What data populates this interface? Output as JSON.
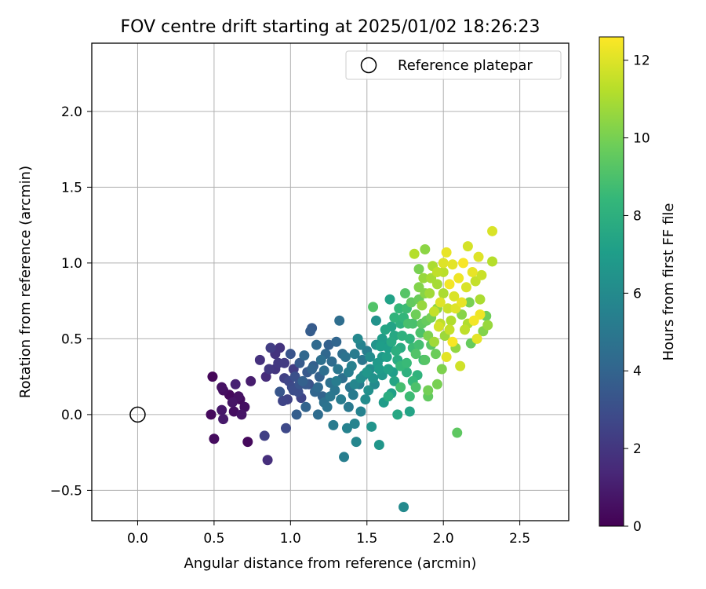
{
  "chart_data": {
    "type": "scatter",
    "title": "FOV centre drift starting at 2025/01/02 18:26:23",
    "xlabel": "Angular distance from reference (arcmin)",
    "ylabel": "Rotation from reference (arcmin)",
    "xlim": [
      -0.3,
      2.82
    ],
    "ylim": [
      -0.7,
      2.45
    ],
    "xticks": [
      0.0,
      0.5,
      1.0,
      1.5,
      2.0,
      2.5
    ],
    "xtick_labels": [
      "0.0",
      "0.5",
      "1.0",
      "1.5",
      "2.0",
      "2.5"
    ],
    "yticks": [
      -0.5,
      0.0,
      0.5,
      1.0,
      1.5,
      2.0
    ],
    "ytick_labels": [
      "−0.5",
      "0.0",
      "0.5",
      "1.0",
      "1.5",
      "2.0"
    ],
    "grid": true,
    "legend": {
      "position": "upper-right",
      "label": "Reference platepar"
    },
    "reference_point": {
      "x": 0.0,
      "y": 0.0
    },
    "colorbar": {
      "label": "Hours from first FF file",
      "min": 0,
      "max": 12.6,
      "ticks": [
        0,
        2,
        4,
        6,
        8,
        10,
        12
      ],
      "tick_labels": [
        "0",
        "2",
        "4",
        "6",
        "8",
        "10",
        "12"
      ],
      "colormap": "viridis"
    },
    "colormap_stops": [
      "#440154",
      "#482878",
      "#3e4989",
      "#31688e",
      "#26828e",
      "#1f9e89",
      "#35b779",
      "#6ece58",
      "#b5de2b",
      "#fde725"
    ],
    "points": [
      {
        "x": 0.49,
        "y": 0.25,
        "c": 0.2
      },
      {
        "x": 0.48,
        "y": 0.0,
        "c": 0.3
      },
      {
        "x": 0.5,
        "y": -0.16,
        "c": 0.4
      },
      {
        "x": 0.55,
        "y": 0.18,
        "c": 0.6
      },
      {
        "x": 0.56,
        "y": 0.16,
        "c": 0.5
      },
      {
        "x": 0.55,
        "y": 0.03,
        "c": 0.8
      },
      {
        "x": 0.56,
        "y": -0.03,
        "c": 0.9
      },
      {
        "x": 0.6,
        "y": 0.13,
        "c": 0.3
      },
      {
        "x": 0.62,
        "y": 0.08,
        "c": 0.7
      },
      {
        "x": 0.63,
        "y": 0.02,
        "c": 0.5
      },
      {
        "x": 0.64,
        "y": 0.2,
        "c": 1.2
      },
      {
        "x": 0.66,
        "y": 0.12,
        "c": 0.6
      },
      {
        "x": 0.67,
        "y": 0.1,
        "c": 0.4
      },
      {
        "x": 0.68,
        "y": 0.0,
        "c": 0.7
      },
      {
        "x": 0.7,
        "y": 0.05,
        "c": 0.5
      },
      {
        "x": 0.72,
        "y": -0.18,
        "c": 0.3
      },
      {
        "x": 0.74,
        "y": 0.22,
        "c": 1.0
      },
      {
        "x": 0.8,
        "y": 0.36,
        "c": 1.8
      },
      {
        "x": 0.83,
        "y": -0.14,
        "c": 2.4
      },
      {
        "x": 0.84,
        "y": 0.25,
        "c": 1.6
      },
      {
        "x": 0.85,
        "y": -0.3,
        "c": 1.7
      },
      {
        "x": 0.87,
        "y": 0.44,
        "c": 2.3
      },
      {
        "x": 0.9,
        "y": 0.3,
        "c": 2.0
      },
      {
        "x": 0.92,
        "y": 0.34,
        "c": 2.1
      },
      {
        "x": 0.93,
        "y": 0.44,
        "c": 1.9
      },
      {
        "x": 0.93,
        "y": 0.15,
        "c": 3.4
      },
      {
        "x": 0.95,
        "y": 0.09,
        "c": 2.6
      },
      {
        "x": 0.96,
        "y": 0.34,
        "c": 2.2
      },
      {
        "x": 0.97,
        "y": -0.09,
        "c": 2.8
      },
      {
        "x": 0.98,
        "y": 0.1,
        "c": 2.5
      },
      {
        "x": 0.99,
        "y": 0.22,
        "c": 2.7
      },
      {
        "x": 1.0,
        "y": 0.4,
        "c": 3.3
      },
      {
        "x": 1.01,
        "y": 0.18,
        "c": 2.9
      },
      {
        "x": 1.02,
        "y": 0.3,
        "c": 2.3
      },
      {
        "x": 1.03,
        "y": 0.25,
        "c": 3.1
      },
      {
        "x": 1.04,
        "y": 0.0,
        "c": 3.8
      },
      {
        "x": 1.05,
        "y": 0.15,
        "c": 3.0
      },
      {
        "x": 1.06,
        "y": 0.34,
        "c": 3.6
      },
      {
        "x": 1.07,
        "y": 0.11,
        "c": 2.6
      },
      {
        "x": 1.08,
        "y": 0.22,
        "c": 3.9
      },
      {
        "x": 1.09,
        "y": 0.39,
        "c": 4.2
      },
      {
        "x": 1.1,
        "y": 0.05,
        "c": 4.0
      },
      {
        "x": 1.11,
        "y": 0.28,
        "c": 3.5
      },
      {
        "x": 1.12,
        "y": 0.2,
        "c": 3.2
      },
      {
        "x": 1.13,
        "y": 0.55,
        "c": 3.7
      },
      {
        "x": 1.14,
        "y": 0.57,
        "c": 3.6
      },
      {
        "x": 1.15,
        "y": 0.32,
        "c": 3.8
      },
      {
        "x": 1.16,
        "y": 0.15,
        "c": 4.1
      },
      {
        "x": 1.17,
        "y": 0.46,
        "c": 4.3
      },
      {
        "x": 1.18,
        "y": 0.0,
        "c": 4.4
      },
      {
        "x": 1.19,
        "y": 0.25,
        "c": 3.9
      },
      {
        "x": 1.2,
        "y": 0.36,
        "c": 4.6
      },
      {
        "x": 1.21,
        "y": 0.12,
        "c": 4.0
      },
      {
        "x": 1.22,
        "y": 0.29,
        "c": 4.5
      },
      {
        "x": 1.23,
        "y": 0.4,
        "c": 4.2
      },
      {
        "x": 1.24,
        "y": 0.05,
        "c": 4.8
      },
      {
        "x": 1.25,
        "y": 0.46,
        "c": 3.9
      },
      {
        "x": 1.26,
        "y": 0.21,
        "c": 4.7
      },
      {
        "x": 1.27,
        "y": 0.35,
        "c": 4.4
      },
      {
        "x": 1.28,
        "y": -0.07,
        "c": 5.2
      },
      {
        "x": 1.29,
        "y": 0.16,
        "c": 4.9
      },
      {
        "x": 1.3,
        "y": 0.48,
        "c": 4.1
      },
      {
        "x": 1.31,
        "y": 0.3,
        "c": 5.0
      },
      {
        "x": 1.32,
        "y": 0.62,
        "c": 4.5
      },
      {
        "x": 1.33,
        "y": 0.1,
        "c": 5.3
      },
      {
        "x": 1.34,
        "y": 0.24,
        "c": 4.6
      },
      {
        "x": 1.35,
        "y": -0.28,
        "c": 5.4
      },
      {
        "x": 1.36,
        "y": 0.38,
        "c": 4.8
      },
      {
        "x": 1.37,
        "y": -0.09,
        "c": 5.6
      },
      {
        "x": 1.38,
        "y": 0.05,
        "c": 5.1
      },
      {
        "x": 1.39,
        "y": 0.18,
        "c": 4.9
      },
      {
        "x": 1.4,
        "y": 0.32,
        "c": 5.5
      },
      {
        "x": 1.41,
        "y": 0.13,
        "c": 5.2
      },
      {
        "x": 1.42,
        "y": -0.06,
        "c": 5.7
      },
      {
        "x": 1.43,
        "y": -0.18,
        "c": 5.8
      },
      {
        "x": 1.44,
        "y": 0.5,
        "c": 5.9
      },
      {
        "x": 1.45,
        "y": 0.2,
        "c": 5.3
      },
      {
        "x": 1.46,
        "y": 0.02,
        "c": 5.6
      },
      {
        "x": 1.47,
        "y": 0.36,
        "c": 5.0
      },
      {
        "x": 1.48,
        "y": 0.26,
        "c": 6.0
      },
      {
        "x": 1.49,
        "y": 0.1,
        "c": 6.1
      },
      {
        "x": 1.5,
        "y": 0.42,
        "c": 5.4
      },
      {
        "x": 1.51,
        "y": 0.16,
        "c": 6.3
      },
      {
        "x": 1.52,
        "y": 0.3,
        "c": 6.2
      },
      {
        "x": 1.53,
        "y": -0.08,
        "c": 6.5
      },
      {
        "x": 1.54,
        "y": 0.71,
        "c": 9.1
      },
      {
        "x": 1.55,
        "y": 0.2,
        "c": 6.0
      },
      {
        "x": 1.56,
        "y": 0.62,
        "c": 6.4
      },
      {
        "x": 1.57,
        "y": 0.34,
        "c": 6.8
      },
      {
        "x": 1.58,
        "y": -0.2,
        "c": 6.6
      },
      {
        "x": 1.59,
        "y": 0.45,
        "c": 7.0
      },
      {
        "x": 1.6,
        "y": 0.26,
        "c": 6.7
      },
      {
        "x": 1.61,
        "y": 0.08,
        "c": 6.9
      },
      {
        "x": 1.62,
        "y": 0.56,
        "c": 7.4
      },
      {
        "x": 1.63,
        "y": 0.38,
        "c": 7.1
      },
      {
        "x": 1.64,
        "y": 0.12,
        "c": 7.8
      },
      {
        "x": 1.65,
        "y": 0.76,
        "c": 7.2
      },
      {
        "x": 1.66,
        "y": 0.48,
        "c": 7.6
      },
      {
        "x": 1.67,
        "y": 0.28,
        "c": 7.0
      },
      {
        "x": 1.68,
        "y": 0.64,
        "c": 8.2
      },
      {
        "x": 1.69,
        "y": 0.42,
        "c": 7.9
      },
      {
        "x": 1.7,
        "y": 0.0,
        "c": 7.5
      },
      {
        "x": 1.71,
        "y": 0.7,
        "c": 8.4
      },
      {
        "x": 1.72,
        "y": 0.18,
        "c": 8.8
      },
      {
        "x": 1.73,
        "y": 0.52,
        "c": 8.0
      },
      {
        "x": 1.74,
        "y": -0.61,
        "c": 6.0
      },
      {
        "x": 1.75,
        "y": 0.8,
        "c": 9.2
      },
      {
        "x": 1.76,
        "y": 0.34,
        "c": 8.5
      },
      {
        "x": 1.77,
        "y": 0.6,
        "c": 8.9
      },
      {
        "x": 1.78,
        "y": 0.02,
        "c": 7.3
      },
      {
        "x": 1.79,
        "y": 0.74,
        "c": 9.5
      },
      {
        "x": 1.8,
        "y": 0.44,
        "c": 8.6
      },
      {
        "x": 1.81,
        "y": 1.06,
        "c": 11.2
      },
      {
        "x": 1.82,
        "y": 0.66,
        "c": 9.8
      },
      {
        "x": 1.83,
        "y": 0.26,
        "c": 8.1
      },
      {
        "x": 1.84,
        "y": 0.84,
        "c": 10.2
      },
      {
        "x": 1.85,
        "y": 0.54,
        "c": 9.0
      },
      {
        "x": 1.86,
        "y": 0.72,
        "c": 10.6
      },
      {
        "x": 1.87,
        "y": 0.36,
        "c": 8.7
      },
      {
        "x": 1.88,
        "y": 1.09,
        "c": 10.4
      },
      {
        "x": 1.89,
        "y": 0.62,
        "c": 9.6
      },
      {
        "x": 1.9,
        "y": 0.16,
        "c": 9.9
      },
      {
        "x": 1.91,
        "y": 0.8,
        "c": 10.8
      },
      {
        "x": 1.92,
        "y": 0.46,
        "c": 9.3
      },
      {
        "x": 1.93,
        "y": 0.98,
        "c": 11.0
      },
      {
        "x": 1.94,
        "y": 0.68,
        "c": 11.5
      },
      {
        "x": 1.95,
        "y": 0.4,
        "c": 9.7
      },
      {
        "x": 1.96,
        "y": 0.86,
        "c": 10.9
      },
      {
        "x": 1.97,
        "y": 0.58,
        "c": 11.8
      },
      {
        "x": 1.98,
        "y": 0.74,
        "c": 12.0
      },
      {
        "x": 1.99,
        "y": 0.3,
        "c": 10.1
      },
      {
        "x": 2.0,
        "y": 0.94,
        "c": 11.3
      },
      {
        "x": 2.01,
        "y": 0.52,
        "c": 10.7
      },
      {
        "x": 2.02,
        "y": 1.07,
        "c": 12.2
      },
      {
        "x": 2.03,
        "y": 0.7,
        "c": 11.6
      },
      {
        "x": 2.04,
        "y": 0.86,
        "c": 12.4
      },
      {
        "x": 2.05,
        "y": 0.62,
        "c": 11.1
      },
      {
        "x": 2.06,
        "y": 0.99,
        "c": 12.1
      },
      {
        "x": 2.07,
        "y": 0.78,
        "c": 11.9
      },
      {
        "x": 2.08,
        "y": 0.44,
        "c": 10.5
      },
      {
        "x": 2.09,
        "y": -0.12,
        "c": 9.4
      },
      {
        "x": 2.1,
        "y": 0.9,
        "c": 12.3
      },
      {
        "x": 2.11,
        "y": 0.32,
        "c": 11.7
      },
      {
        "x": 2.12,
        "y": 0.66,
        "c": 10.3
      },
      {
        "x": 2.13,
        "y": 1.0,
        "c": 12.5
      },
      {
        "x": 2.14,
        "y": 0.56,
        "c": 11.4
      },
      {
        "x": 2.15,
        "y": 0.84,
        "c": 11.9
      },
      {
        "x": 2.16,
        "y": 1.11,
        "c": 11.8
      },
      {
        "x": 2.17,
        "y": 0.74,
        "c": 10.0
      },
      {
        "x": 2.18,
        "y": 0.47,
        "c": 9.6
      },
      {
        "x": 2.19,
        "y": 0.94,
        "c": 12.2
      },
      {
        "x": 2.2,
        "y": 0.62,
        "c": 12.4
      },
      {
        "x": 2.21,
        "y": 0.88,
        "c": 11.5
      },
      {
        "x": 2.22,
        "y": 0.5,
        "c": 12.1
      },
      {
        "x": 2.23,
        "y": 1.04,
        "c": 12.0
      },
      {
        "x": 2.24,
        "y": 0.66,
        "c": 12.3
      },
      {
        "x": 2.25,
        "y": 0.92,
        "c": 11.6
      },
      {
        "x": 2.26,
        "y": 0.55,
        "c": 10.2
      },
      {
        "x": 2.28,
        "y": 0.65,
        "c": 9.8
      },
      {
        "x": 2.29,
        "y": 0.59,
        "c": 10.6
      },
      {
        "x": 2.32,
        "y": 1.21,
        "c": 11.9
      },
      {
        "x": 2.32,
        "y": 1.01,
        "c": 11.2
      },
      {
        "x": 1.62,
        "y": 0.47,
        "c": 6.6
      },
      {
        "x": 1.66,
        "y": 0.58,
        "c": 7.3
      },
      {
        "x": 1.7,
        "y": 0.36,
        "c": 7.7
      },
      {
        "x": 1.74,
        "y": 0.64,
        "c": 8.3
      },
      {
        "x": 1.78,
        "y": 0.5,
        "c": 8.1
      },
      {
        "x": 1.82,
        "y": 0.4,
        "c": 9.1
      },
      {
        "x": 1.86,
        "y": 0.6,
        "c": 9.4
      },
      {
        "x": 1.9,
        "y": 0.52,
        "c": 10.1
      },
      {
        "x": 1.94,
        "y": 0.48,
        "c": 10.8
      },
      {
        "x": 1.98,
        "y": 0.6,
        "c": 11.4
      },
      {
        "x": 2.02,
        "y": 0.38,
        "c": 12.1
      },
      {
        "x": 2.06,
        "y": 0.48,
        "c": 12.5
      },
      {
        "x": 1.6,
        "y": 0.5,
        "c": 6.9
      },
      {
        "x": 1.64,
        "y": 0.3,
        "c": 7.2
      },
      {
        "x": 1.68,
        "y": 0.22,
        "c": 7.4
      },
      {
        "x": 1.72,
        "y": 0.44,
        "c": 7.7
      },
      {
        "x": 1.76,
        "y": 0.28,
        "c": 8.0
      },
      {
        "x": 1.8,
        "y": 0.22,
        "c": 8.4
      },
      {
        "x": 1.84,
        "y": 0.46,
        "c": 8.8
      },
      {
        "x": 1.88,
        "y": 0.36,
        "c": 9.2
      },
      {
        "x": 1.92,
        "y": 0.64,
        "c": 9.9
      },
      {
        "x": 1.96,
        "y": 0.7,
        "c": 10.4
      },
      {
        "x": 2.0,
        "y": 0.8,
        "c": 11.0
      },
      {
        "x": 2.04,
        "y": 0.56,
        "c": 11.5
      },
      {
        "x": 1.26,
        "y": 0.12,
        "c": 5.0
      },
      {
        "x": 1.3,
        "y": 0.22,
        "c": 5.3
      },
      {
        "x": 1.34,
        "y": 0.4,
        "c": 4.6
      },
      {
        "x": 1.38,
        "y": 0.28,
        "c": 5.4
      },
      {
        "x": 1.42,
        "y": 0.2,
        "c": 5.8
      },
      {
        "x": 1.46,
        "y": 0.24,
        "c": 6.2
      },
      {
        "x": 1.5,
        "y": 0.28,
        "c": 6.6
      },
      {
        "x": 1.54,
        "y": 0.24,
        "c": 6.4
      },
      {
        "x": 1.58,
        "y": 0.3,
        "c": 6.9
      },
      {
        "x": 1.1,
        "y": 0.2,
        "c": 3.5
      },
      {
        "x": 1.14,
        "y": 0.3,
        "c": 4.0
      },
      {
        "x": 1.18,
        "y": 0.18,
        "c": 4.3
      },
      {
        "x": 1.22,
        "y": 0.08,
        "c": 4.7
      },
      {
        "x": 1.06,
        "y": 0.2,
        "c": 3.3
      },
      {
        "x": 1.02,
        "y": 0.16,
        "c": 3.0
      },
      {
        "x": 0.96,
        "y": 0.24,
        "c": 2.4
      },
      {
        "x": 0.9,
        "y": 0.4,
        "c": 1.9
      },
      {
        "x": 0.86,
        "y": 0.3,
        "c": 2.1
      },
      {
        "x": 1.42,
        "y": 0.4,
        "c": 5.2
      },
      {
        "x": 1.46,
        "y": 0.46,
        "c": 5.6
      },
      {
        "x": 1.52,
        "y": 0.38,
        "c": 6.1
      },
      {
        "x": 1.56,
        "y": 0.46,
        "c": 6.5
      },
      {
        "x": 1.6,
        "y": 0.38,
        "c": 6.8
      },
      {
        "x": 1.64,
        "y": 0.44,
        "c": 7.0
      },
      {
        "x": 1.68,
        "y": 0.52,
        "c": 7.5
      },
      {
        "x": 1.72,
        "y": 0.6,
        "c": 8.0
      },
      {
        "x": 1.76,
        "y": 0.7,
        "c": 8.6
      },
      {
        "x": 1.8,
        "y": 0.6,
        "c": 8.9
      },
      {
        "x": 1.84,
        "y": 0.76,
        "c": 9.7
      },
      {
        "x": 1.88,
        "y": 0.8,
        "c": 10.3
      },
      {
        "x": 1.92,
        "y": 0.9,
        "c": 10.9
      },
      {
        "x": 1.96,
        "y": 0.94,
        "c": 11.4
      },
      {
        "x": 2.0,
        "y": 1.0,
        "c": 12.0
      },
      {
        "x": 1.84,
        "y": 0.96,
        "c": 10.0
      },
      {
        "x": 1.87,
        "y": 0.9,
        "c": 10.6
      },
      {
        "x": 2.12,
        "y": 0.74,
        "c": 12.2
      },
      {
        "x": 2.08,
        "y": 0.7,
        "c": 12.0
      },
      {
        "x": 2.16,
        "y": 0.6,
        "c": 11.1
      },
      {
        "x": 2.24,
        "y": 0.76,
        "c": 11.0
      },
      {
        "x": 1.72,
        "y": 0.32,
        "c": 8.4
      },
      {
        "x": 1.78,
        "y": 0.12,
        "c": 8.6
      },
      {
        "x": 1.82,
        "y": 0.18,
        "c": 9.0
      },
      {
        "x": 1.9,
        "y": 0.12,
        "c": 9.5
      },
      {
        "x": 1.96,
        "y": 0.2,
        "c": 10.0
      },
      {
        "x": 1.66,
        "y": 0.14,
        "c": 7.1
      }
    ]
  }
}
